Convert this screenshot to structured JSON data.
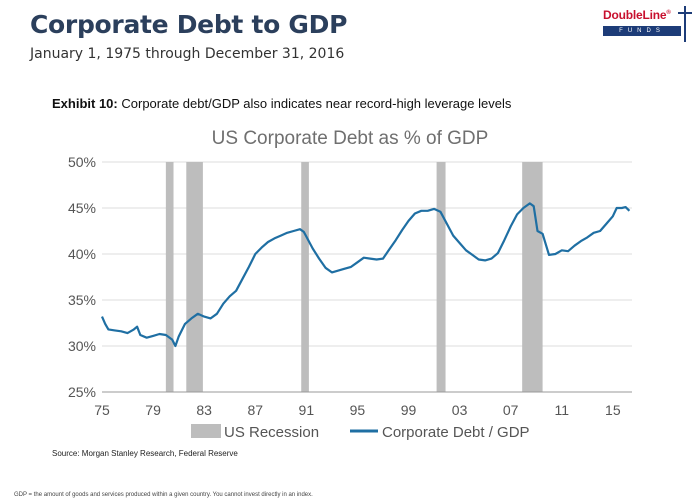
{
  "header": {
    "title": "Corporate Debt to GDP",
    "subtitle": "January 1, 1975 through December 31, 2016"
  },
  "logo": {
    "name": "DoubleLine",
    "registered_mark": "®",
    "funds": "FUNDS"
  },
  "exhibit": {
    "label": "Exhibit 10:",
    "caption": "Corporate debt/GDP also indicates near record-high leverage levels"
  },
  "source": "Source: Morgan Stanley Research, Federal Reserve",
  "footnote": "GDP = the amount of goods and services produced within a given country. You cannot invest directly in an index.",
  "chart_data": {
    "type": "line",
    "title": "US Corporate Debt as % of GDP",
    "xlabel": "",
    "ylabel": "",
    "xlim": [
      1975,
      2016.5
    ],
    "ylim": [
      25,
      50
    ],
    "x_ticks": [
      1975,
      1979,
      1983,
      1987,
      1991,
      1995,
      1999,
      2003,
      2007,
      2011,
      2015
    ],
    "x_tick_labels": [
      "75",
      "79",
      "83",
      "87",
      "91",
      "95",
      "99",
      "03",
      "07",
      "11",
      "15"
    ],
    "y_ticks": [
      25,
      30,
      35,
      40,
      45,
      50
    ],
    "y_tick_labels": [
      "25%",
      "30%",
      "35%",
      "40%",
      "45%",
      "50%"
    ],
    "grid": "horizontal",
    "legend_position": "bottom",
    "legend": [
      {
        "name": "US Recession",
        "kind": "band",
        "color": "#bdbdbd"
      },
      {
        "name": "Corporate Debt / GDP",
        "kind": "line",
        "color": "#1f6fa3"
      }
    ],
    "recessions": [
      [
        1980.0,
        1980.6
      ],
      [
        1981.6,
        1982.9
      ],
      [
        1990.6,
        1991.2
      ],
      [
        2001.2,
        2001.9
      ],
      [
        2007.9,
        2009.5
      ]
    ],
    "series": [
      {
        "name": "Corporate Debt / GDP",
        "color": "#1f6fa3",
        "points": [
          [
            1975.0,
            33.2
          ],
          [
            1975.25,
            32.4
          ],
          [
            1975.5,
            31.8
          ],
          [
            1976.0,
            31.7
          ],
          [
            1976.5,
            31.6
          ],
          [
            1977.0,
            31.4
          ],
          [
            1977.5,
            31.8
          ],
          [
            1977.75,
            32.1
          ],
          [
            1978.0,
            31.2
          ],
          [
            1978.5,
            30.9
          ],
          [
            1979.0,
            31.1
          ],
          [
            1979.5,
            31.3
          ],
          [
            1980.0,
            31.2
          ],
          [
            1980.5,
            30.7
          ],
          [
            1980.75,
            30.0
          ],
          [
            1981.0,
            31.0
          ],
          [
            1981.5,
            32.4
          ],
          [
            1982.0,
            33.0
          ],
          [
            1982.5,
            33.5
          ],
          [
            1983.0,
            33.2
          ],
          [
            1983.5,
            33.0
          ],
          [
            1984.0,
            33.5
          ],
          [
            1984.5,
            34.6
          ],
          [
            1985.0,
            35.4
          ],
          [
            1985.5,
            36.0
          ],
          [
            1986.0,
            37.3
          ],
          [
            1986.5,
            38.6
          ],
          [
            1987.0,
            40.0
          ],
          [
            1987.5,
            40.7
          ],
          [
            1988.0,
            41.3
          ],
          [
            1988.5,
            41.7
          ],
          [
            1989.0,
            42.0
          ],
          [
            1989.5,
            42.3
          ],
          [
            1990.0,
            42.5
          ],
          [
            1990.5,
            42.7
          ],
          [
            1990.8,
            42.4
          ],
          [
            1991.0,
            41.9
          ],
          [
            1991.5,
            40.6
          ],
          [
            1992.0,
            39.5
          ],
          [
            1992.5,
            38.5
          ],
          [
            1993.0,
            38.0
          ],
          [
            1993.5,
            38.2
          ],
          [
            1994.0,
            38.4
          ],
          [
            1994.5,
            38.6
          ],
          [
            1995.0,
            39.1
          ],
          [
            1995.5,
            39.6
          ],
          [
            1996.0,
            39.5
          ],
          [
            1996.5,
            39.4
          ],
          [
            1997.0,
            39.5
          ],
          [
            1997.5,
            40.5
          ],
          [
            1998.0,
            41.5
          ],
          [
            1998.5,
            42.6
          ],
          [
            1999.0,
            43.6
          ],
          [
            1999.5,
            44.4
          ],
          [
            2000.0,
            44.7
          ],
          [
            2000.5,
            44.7
          ],
          [
            2001.0,
            44.9
          ],
          [
            2001.5,
            44.6
          ],
          [
            2002.0,
            43.3
          ],
          [
            2002.5,
            42.0
          ],
          [
            2003.0,
            41.2
          ],
          [
            2003.5,
            40.4
          ],
          [
            2004.0,
            39.9
          ],
          [
            2004.5,
            39.4
          ],
          [
            2005.0,
            39.3
          ],
          [
            2005.5,
            39.5
          ],
          [
            2006.0,
            40.1
          ],
          [
            2006.5,
            41.5
          ],
          [
            2007.0,
            43.0
          ],
          [
            2007.5,
            44.3
          ],
          [
            2008.0,
            45.0
          ],
          [
            2008.5,
            45.5
          ],
          [
            2008.8,
            45.2
          ],
          [
            2009.1,
            42.5
          ],
          [
            2009.5,
            42.2
          ],
          [
            2010.0,
            39.9
          ],
          [
            2010.5,
            40.0
          ],
          [
            2011.0,
            40.4
          ],
          [
            2011.5,
            40.3
          ],
          [
            2012.0,
            40.9
          ],
          [
            2012.5,
            41.4
          ],
          [
            2013.0,
            41.8
          ],
          [
            2013.5,
            42.3
          ],
          [
            2014.0,
            42.5
          ],
          [
            2014.5,
            43.3
          ],
          [
            2015.0,
            44.1
          ],
          [
            2015.3,
            45.0
          ],
          [
            2015.7,
            45.0
          ],
          [
            2016.0,
            45.1
          ],
          [
            2016.3,
            44.7
          ]
        ]
      }
    ]
  }
}
